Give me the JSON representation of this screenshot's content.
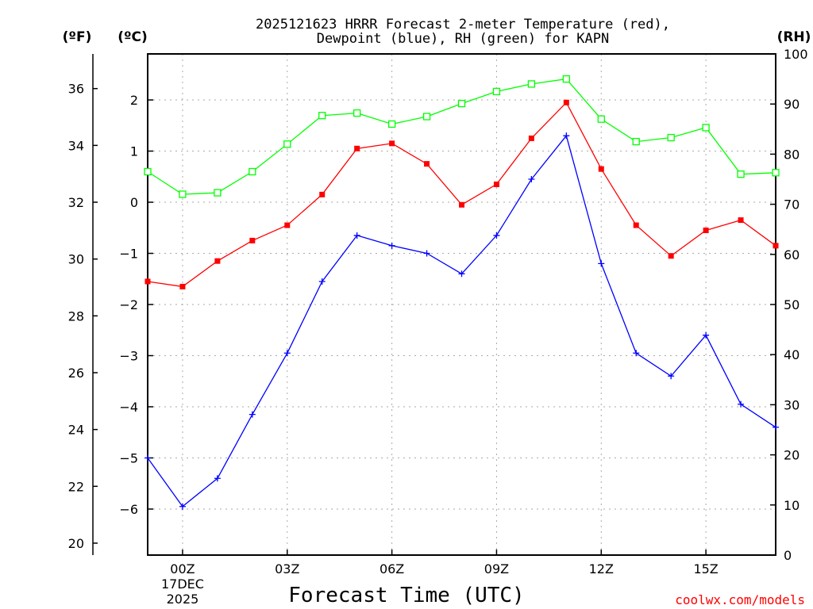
{
  "chart_data": {
    "type": "line",
    "title_line1": "2025121623 HRRR Forecast 2-meter Temperature (red),",
    "title_line2": "Dewpoint (blue), RH (green) for KAPN",
    "xlabel": "Forecast Time (UTC)",
    "credit": "coolwx.com/models",
    "units": {
      "left_f": "(ºF)",
      "left_c": "(ºC)",
      "right": "(RH)"
    },
    "x": [
      -1,
      0,
      1,
      2,
      3,
      4,
      5,
      6,
      7,
      8,
      9,
      10,
      11,
      12,
      13,
      14,
      15,
      16,
      17
    ],
    "xlim": [
      -1,
      17
    ],
    "x_ticks": [
      {
        "x": 0,
        "label": "00Z",
        "sub1": "17DEC",
        "sub2": "2025"
      },
      {
        "x": 3,
        "label": "03Z",
        "sub1": "",
        "sub2": ""
      },
      {
        "x": 6,
        "label": "06Z",
        "sub1": "",
        "sub2": ""
      },
      {
        "x": 9,
        "label": "09Z",
        "sub1": "",
        "sub2": ""
      },
      {
        "x": 12,
        "label": "12Z",
        "sub1": "",
        "sub2": ""
      },
      {
        "x": 15,
        "label": "15Z",
        "sub1": "",
        "sub2": ""
      }
    ],
    "ylim_c": [
      -6.9,
      2.9
    ],
    "celsius_ticks": [
      "2",
      "1",
      "0",
      "−1",
      "−2",
      "−3",
      "−4",
      "−5",
      "−6"
    ],
    "celsius_values": [
      2,
      1,
      0,
      -1,
      -2,
      -3,
      -4,
      -5,
      -6
    ],
    "fahrenheit_ticks": [
      "36",
      "34",
      "32",
      "30",
      "28",
      "26",
      "24",
      "22",
      "20"
    ],
    "fahrenheit_values": [
      36,
      34,
      32,
      30,
      28,
      26,
      24,
      22,
      20
    ],
    "rh_ticks": [
      "100",
      "90",
      "80",
      "70",
      "60",
      "50",
      "40",
      "30",
      "20",
      "10",
      "0"
    ],
    "rh_values": [
      100,
      90,
      80,
      70,
      60,
      50,
      40,
      30,
      20,
      10,
      0
    ],
    "ylim_rh": [
      0,
      100
    ],
    "series": [
      {
        "name": "Temperature",
        "axis": "celsius",
        "color": "#ff0000",
        "marker": "filled-square",
        "values": [
          -1.55,
          -1.65,
          -1.15,
          -0.75,
          -0.45,
          0.15,
          1.05,
          1.15,
          0.75,
          -0.05,
          0.35,
          1.25,
          1.95,
          0.65,
          -0.45,
          -1.05,
          -0.55,
          -0.35,
          -0.85
        ]
      },
      {
        "name": "Dewpoint",
        "axis": "celsius",
        "color": "#0000ff",
        "marker": "plus",
        "values": [
          -5.0,
          -5.95,
          -5.4,
          -4.15,
          -2.95,
          -1.55,
          -0.65,
          -0.85,
          -1.0,
          -1.4,
          -0.65,
          0.45,
          1.3,
          -1.2,
          -2.95,
          -3.4,
          -2.6,
          -3.95,
          -4.4
        ]
      },
      {
        "name": "RH",
        "axis": "rh",
        "color": "#00ff00",
        "marker": "open-square",
        "values": [
          76.5,
          72,
          72.3,
          76.5,
          82,
          87.7,
          88.2,
          86,
          87.5,
          90.1,
          92.5,
          94,
          95,
          87,
          82.5,
          83.3,
          85.3,
          76,
          76.3
        ]
      }
    ]
  }
}
